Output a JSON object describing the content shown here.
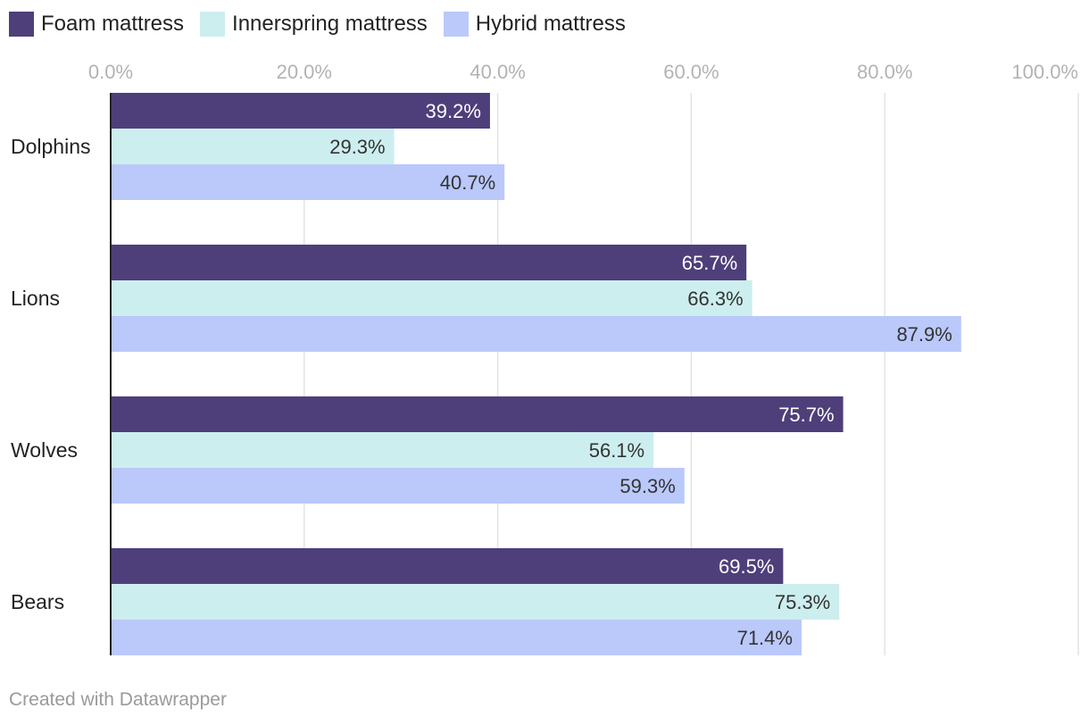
{
  "chart_data": {
    "type": "bar",
    "orientation": "horizontal",
    "categories": [
      "Dolphins",
      "Lions",
      "Wolves",
      "Bears"
    ],
    "series": [
      {
        "name": "Foam mattress",
        "color": "#4e3f7a",
        "label_color": "#ffffff",
        "values": [
          39.2,
          65.7,
          75.7,
          69.5
        ]
      },
      {
        "name": "Innerspring mattress",
        "color": "#cdeeee",
        "label_color": "#333333",
        "values": [
          29.3,
          66.3,
          56.1,
          75.3
        ]
      },
      {
        "name": "Hybrid mattress",
        "color": "#bac9fa",
        "label_color": "#333333",
        "values": [
          40.7,
          87.9,
          59.3,
          71.4
        ]
      }
    ],
    "value_labels": [
      [
        "39.2%",
        "29.3%",
        "40.7%"
      ],
      [
        "65.7%",
        "66.3%",
        "87.9%"
      ],
      [
        "75.7%",
        "56.1%",
        "59.3%"
      ],
      [
        "69.5%",
        "75.3%",
        "71.4%"
      ]
    ],
    "xlim": [
      0,
      100
    ],
    "x_ticks": [
      0,
      20,
      40,
      60,
      80,
      100
    ],
    "x_tick_labels": [
      "0.0%",
      "20.0%",
      "40.0%",
      "60.0%",
      "80.0%",
      "100.0%"
    ],
    "grid": true,
    "legend_position": "top-left",
    "title": "",
    "xlabel": "",
    "ylabel": ""
  },
  "footer": {
    "credit": "Created with Datawrapper"
  }
}
